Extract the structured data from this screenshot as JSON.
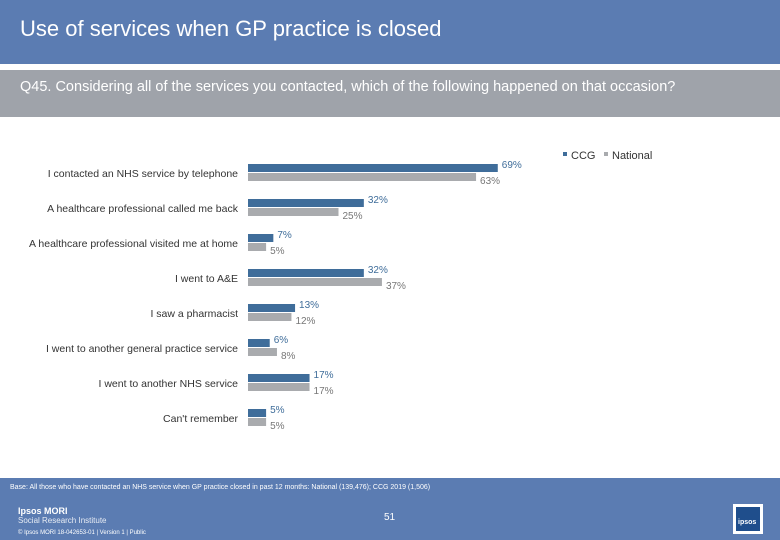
{
  "title": "Use of services when GP practice is closed",
  "question": "Q45. Considering all of the services you contacted, which of the following happened on that occasion?",
  "footer": {
    "base_note": "Base: All those who have contacted an NHS service when GP practice closed in past 12 months: National (139,476); CCG 2019 (1,506)",
    "logo_main": "Ipsos MORI",
    "logo_sub": "Social Research Institute",
    "copyright": "© Ipsos MORI     18-042653-01 | Version 1 | Public",
    "page_number": "51",
    "badge_text": "ipsos"
  },
  "colors": {
    "ccg": "#3f6d9a",
    "national": "#a9abae",
    "header": "#5b7cb2",
    "question_bar": "#9fa3aa"
  },
  "chart_data": {
    "type": "bar",
    "orientation": "horizontal",
    "unit": "%",
    "legend": {
      "position": "top-right",
      "items": [
        "CCG",
        "National"
      ]
    },
    "categories": [
      "I contacted an NHS service by telephone",
      "A healthcare professional called me back",
      "A healthcare professional visited me at home",
      "I went to A&E",
      "I saw a pharmacist",
      "I went to another general practice service",
      "I went to another NHS service",
      "Can't remember"
    ],
    "series": [
      {
        "name": "CCG",
        "values": [
          69,
          32,
          7,
          32,
          13,
          6,
          17,
          5
        ]
      },
      {
        "name": "National",
        "values": [
          63,
          25,
          5,
          37,
          12,
          8,
          17,
          5
        ]
      }
    ],
    "xlim": [
      0,
      100
    ],
    "grid": false
  }
}
